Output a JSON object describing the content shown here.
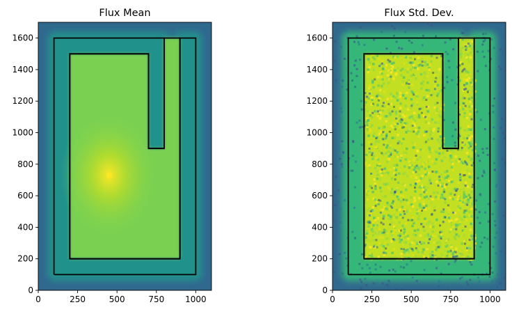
{
  "chart_data": [
    {
      "type": "heatmap",
      "title": "Flux Mean",
      "xlabel": "",
      "ylabel": "",
      "xlim": [
        0,
        1100
      ],
      "ylim": [
        0,
        1700
      ],
      "xticks": [
        0,
        250,
        500,
        750,
        1000
      ],
      "yticks": [
        0,
        200,
        400,
        600,
        800,
        1000,
        1200,
        1400,
        1600
      ],
      "colormap": "viridis",
      "grid": false,
      "hotspot": {
        "x": 450,
        "y": 730
      },
      "outer_outline": [
        [
          100,
          100
        ],
        [
          1000,
          100
        ],
        [
          1000,
          1600
        ],
        [
          900,
          1600
        ],
        [
          900,
          200
        ],
        [
          200,
          200
        ],
        [
          200,
          1500
        ],
        [
          700,
          1500
        ],
        [
          700,
          900
        ],
        [
          800,
          900
        ],
        [
          800,
          1600
        ],
        [
          100,
          1600
        ],
        [
          100,
          100
        ]
      ],
      "inner_outline": [
        [
          200,
          200
        ],
        [
          900,
          200
        ],
        [
          900,
          1600
        ],
        [
          800,
          1600
        ],
        [
          800,
          900
        ],
        [
          700,
          900
        ],
        [
          700,
          1500
        ],
        [
          200,
          1500
        ],
        [
          200,
          200
        ]
      ],
      "colors": {
        "background": "#31688e",
        "edge": "#21918c",
        "region": "#7ad151",
        "hot": "#fde725"
      }
    },
    {
      "type": "heatmap",
      "title": "Flux Std. Dev.",
      "xlabel": "",
      "ylabel": "",
      "xlim": [
        0,
        1100
      ],
      "ylim": [
        0,
        1700
      ],
      "xticks": [
        0,
        250,
        500,
        750,
        1000
      ],
      "yticks": [
        0,
        200,
        400,
        600,
        800,
        1000,
        1200,
        1400,
        1600
      ],
      "colormap": "viridis",
      "grid": false,
      "outer_outline": [
        [
          100,
          100
        ],
        [
          1000,
          100
        ],
        [
          1000,
          1600
        ],
        [
          900,
          1600
        ],
        [
          900,
          200
        ],
        [
          200,
          200
        ],
        [
          200,
          1500
        ],
        [
          700,
          1500
        ],
        [
          700,
          900
        ],
        [
          800,
          900
        ],
        [
          800,
          1600
        ],
        [
          100,
          1600
        ],
        [
          100,
          100
        ]
      ],
      "inner_outline": [
        [
          200,
          200
        ],
        [
          900,
          200
        ],
        [
          900,
          1600
        ],
        [
          800,
          1600
        ],
        [
          800,
          900
        ],
        [
          700,
          900
        ],
        [
          700,
          1500
        ],
        [
          200,
          1500
        ],
        [
          200,
          200
        ]
      ],
      "colors": {
        "background": "#31688e",
        "edge": "#35b779",
        "region": "#c2df23",
        "hot": "#fde725"
      }
    }
  ]
}
